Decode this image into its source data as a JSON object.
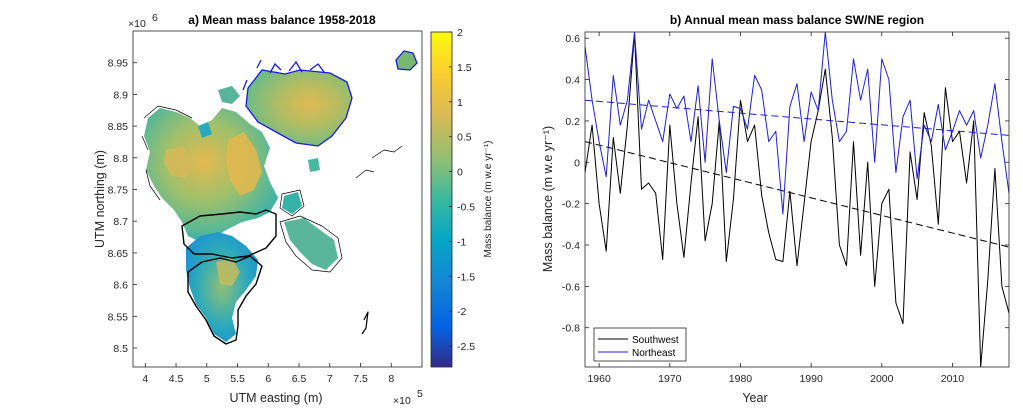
{
  "chart_data": [
    {
      "type": "heatmap",
      "title": "a) Mean mass balance 1958-2018",
      "xlabel": "UTM easting (m)",
      "ylabel": "UTM northing (m)",
      "x_multiplier": "×10",
      "x_exponent": "5",
      "y_multiplier": "×10",
      "y_exponent": "6",
      "x_ticks": [
        4,
        4.5,
        5,
        5.5,
        6,
        6.5,
        7,
        7.5,
        8
      ],
      "x_tick_labels": [
        "4",
        "4.5",
        "5",
        "5.5",
        "6",
        "6.5",
        "7",
        "7.5",
        "8"
      ],
      "xlim": [
        3.8,
        8.5
      ],
      "y_ticks": [
        8.5,
        8.55,
        8.6,
        8.65,
        8.7,
        8.75,
        8.8,
        8.85,
        8.9,
        8.95
      ],
      "y_tick_labels": [
        "8.5",
        "8.55",
        "8.6",
        "8.65",
        "8.7",
        "8.75",
        "8.8",
        "8.85",
        "8.9",
        "8.95"
      ],
      "ylim": [
        8.47,
        9.0
      ],
      "colorbar": {
        "label": "Mass balance (m w.e yr⁻¹)",
        "ticks": [
          2,
          1.5,
          1,
          0.5,
          0,
          -0.5,
          -1,
          -1.5,
          -2,
          -2.5
        ],
        "tick_labels": [
          "2",
          "1.5",
          "1",
          "0.5",
          "0",
          "-0.5",
          "-1",
          "-1.5",
          "-2",
          "-2.5"
        ],
        "range": [
          -2.8,
          2.0
        ],
        "colormap": "parula"
      },
      "regions": [
        {
          "name": "Southwest",
          "outline_color": "#000000"
        },
        {
          "name": "Northeast",
          "outline_color": "#0000ff"
        }
      ]
    },
    {
      "type": "line",
      "title": "b) Annual mean mass balance SW/NE region",
      "xlabel": "Year",
      "ylabel": "Mass balance (m w.e yr⁻¹)",
      "xlim": [
        1958,
        2018
      ],
      "ylim": [
        -0.99,
        0.63
      ],
      "x_ticks": [
        1960,
        1970,
        1980,
        1990,
        2000,
        2010
      ],
      "y_ticks": [
        -0.8,
        -0.6,
        -0.4,
        -0.2,
        0,
        0.2,
        0.4,
        0.6
      ],
      "y_tick_labels": [
        "-0.8",
        "-0.6",
        "-0.4",
        "-0.2",
        "0",
        "0.2",
        "0.4",
        "0.6"
      ],
      "legend_position": "bottom-left",
      "x": [
        1958,
        1959,
        1960,
        1961,
        1962,
        1963,
        1964,
        1965,
        1966,
        1967,
        1968,
        1969,
        1970,
        1971,
        1972,
        1973,
        1974,
        1975,
        1976,
        1977,
        1978,
        1979,
        1980,
        1981,
        1982,
        1983,
        1984,
        1985,
        1986,
        1987,
        1988,
        1989,
        1990,
        1991,
        1992,
        1993,
        1994,
        1995,
        1996,
        1997,
        1998,
        1999,
        2000,
        2001,
        2002,
        2003,
        2004,
        2005,
        2006,
        2007,
        2008,
        2009,
        2010,
        2011,
        2012,
        2013,
        2014,
        2015,
        2016,
        2017,
        2018
      ],
      "series": [
        {
          "name": "Southwest",
          "color": "#000000",
          "values": [
            -0.05,
            0.18,
            -0.2,
            -0.43,
            0.12,
            -0.15,
            0.18,
            0.62,
            -0.13,
            -0.1,
            -0.15,
            -0.47,
            0.18,
            -0.2,
            -0.46,
            -0.1,
            0.22,
            -0.38,
            -0.2,
            0.2,
            -0.48,
            -0.18,
            0.3,
            0.1,
            0.18,
            -0.16,
            -0.34,
            -0.47,
            -0.48,
            -0.14,
            -0.5,
            -0.2,
            0.1,
            0.25,
            0.45,
            0.12,
            -0.4,
            -0.5,
            0.1,
            -0.45,
            0.0,
            -0.6,
            -0.2,
            -0.13,
            -0.68,
            -0.78,
            0.05,
            -0.18,
            0.24,
            0.08,
            -0.3,
            0.36,
            0.1,
            0.15,
            -0.1,
            0.2,
            -0.99,
            -0.57,
            -0.03,
            -0.6,
            -0.73
          ],
          "trend": [
            0.1,
            -0.41
          ]
        },
        {
          "name": "Northeast",
          "color": "#1f1fd6",
          "values": [
            0.56,
            0.3,
            0.1,
            -0.07,
            0.42,
            0.18,
            0.3,
            0.63,
            0.16,
            0.3,
            0.2,
            0.1,
            0.33,
            0.26,
            0.32,
            0.1,
            0.37,
            0.0,
            0.5,
            0.2,
            -0.05,
            0.27,
            0.26,
            0.16,
            0.42,
            0.35,
            0.1,
            0.15,
            -0.25,
            0.27,
            0.38,
            0.1,
            0.34,
            0.25,
            0.63,
            0.3,
            0.1,
            0.15,
            0.5,
            0.3,
            0.45,
            0.0,
            0.5,
            0.4,
            -0.05,
            0.22,
            0.3,
            -0.08,
            0.18,
            0.1,
            0.28,
            0.06,
            0.15,
            0.25,
            0.18,
            0.25,
            0.02,
            0.18,
            0.38,
            0.1,
            -0.15
          ],
          "trend": [
            0.3,
            0.13
          ]
        }
      ]
    }
  ]
}
